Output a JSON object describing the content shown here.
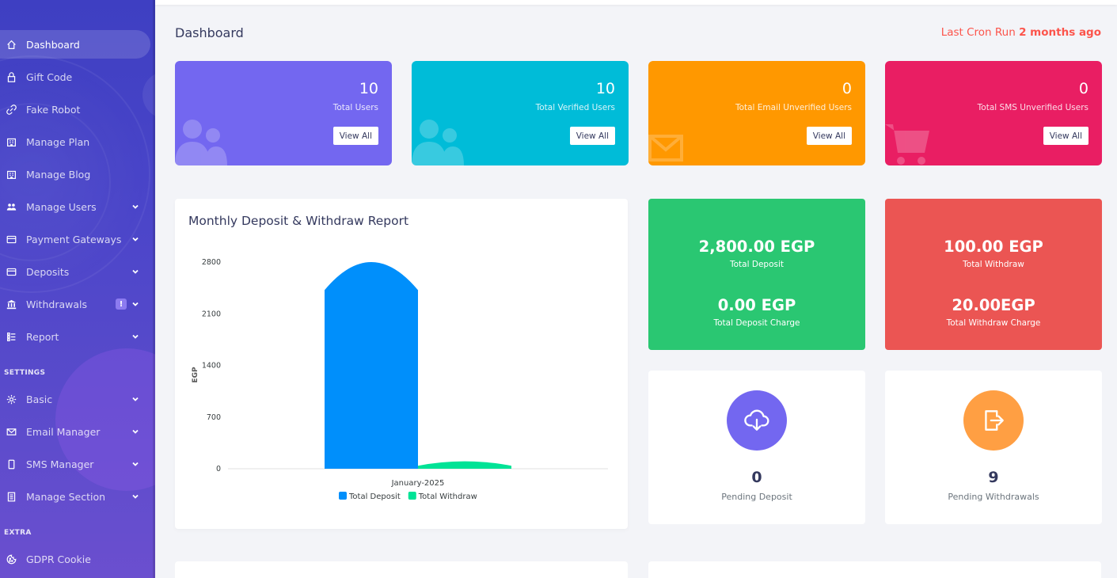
{
  "sidebar": {
    "items": [
      {
        "label": "Dashboard",
        "icon": "home-icon",
        "active": true
      },
      {
        "label": "Gift Code",
        "icon": "lock-icon"
      },
      {
        "label": "Fake Robot",
        "icon": "link-icon"
      },
      {
        "label": "Manage Plan",
        "icon": "building-icon"
      },
      {
        "label": "Manage Blog",
        "icon": "building-icon"
      },
      {
        "label": "Manage Users",
        "icon": "users-icon",
        "has_children": true
      },
      {
        "label": "Payment Gateways",
        "icon": "credit-card-icon",
        "has_children": true
      },
      {
        "label": "Deposits",
        "icon": "credit-card-icon",
        "has_children": true
      },
      {
        "label": "Withdrawals",
        "icon": "bank-icon",
        "has_children": true,
        "alert": "!"
      },
      {
        "label": "Report",
        "icon": "list-icon",
        "has_children": true
      }
    ],
    "settings_heading": "SETTINGS",
    "settings_items": [
      {
        "label": "Basic",
        "icon": "gear-icon",
        "has_children": true
      },
      {
        "label": "Email Manager",
        "icon": "envelope-icon",
        "has_children": true
      },
      {
        "label": "SMS Manager",
        "icon": "mobile-icon",
        "has_children": true
      },
      {
        "label": "Manage Section",
        "icon": "file-icon",
        "has_children": true
      }
    ],
    "extra_heading": "EXTRA",
    "extra_items": [
      {
        "label": "GDPR Cookie",
        "icon": "cookie-icon"
      }
    ]
  },
  "header": {
    "title": "Dashboard",
    "cron_prefix": "Last Cron Run ",
    "cron_value": "2 months ago"
  },
  "stats": [
    {
      "value": "10",
      "label": "Total Users",
      "button": "View All",
      "color": "#7367f0",
      "icon": "users-icon"
    },
    {
      "value": "10",
      "label": "Total Verified Users",
      "button": "View All",
      "color": "#00bcd8",
      "icon": "users-icon"
    },
    {
      "value": "0",
      "label": "Total Email Unverified Users",
      "button": "View All",
      "color": "#ff9800",
      "icon": "envelope-icon"
    },
    {
      "value": "0",
      "label": "Total SMS Unverified Users",
      "button": "View All",
      "color": "#e91e63",
      "icon": "cart-icon"
    }
  ],
  "chart": {
    "title": "Monthly Deposit & Withdraw Report"
  },
  "chart_data": {
    "type": "bar",
    "categories": [
      "January-2025"
    ],
    "series": [
      {
        "name": "Total Deposit",
        "values": [
          2800
        ],
        "color": "#008ffb"
      },
      {
        "name": "Total Withdraw",
        "values": [
          100
        ],
        "color": "#00e396"
      }
    ],
    "ylabel": "EGP",
    "ylim": [
      0,
      2800
    ],
    "yticks": [
      "2800",
      "2100",
      "1400",
      "700",
      "0"
    ],
    "legend": "bottom"
  },
  "summary": {
    "deposit": {
      "total": "2,800.00 EGP",
      "total_label": "Total Deposit",
      "charge": "0.00 EGP",
      "charge_label": "Total Deposit Charge",
      "color": "#2ac772"
    },
    "withdraw": {
      "total": "100.00 EGP",
      "total_label": "Total Withdraw",
      "charge": "20.00EGP",
      "charge_label": "Total Withdraw Charge",
      "color": "#eb5553"
    }
  },
  "pending": {
    "deposit": {
      "value": "0",
      "label": "Pending Deposit",
      "color": "#7367f0",
      "icon": "cloud-download-icon"
    },
    "withdrawals": {
      "value": "9",
      "label": "Pending Withdrawals",
      "color": "#ff9f43",
      "icon": "sign-out-icon"
    }
  }
}
